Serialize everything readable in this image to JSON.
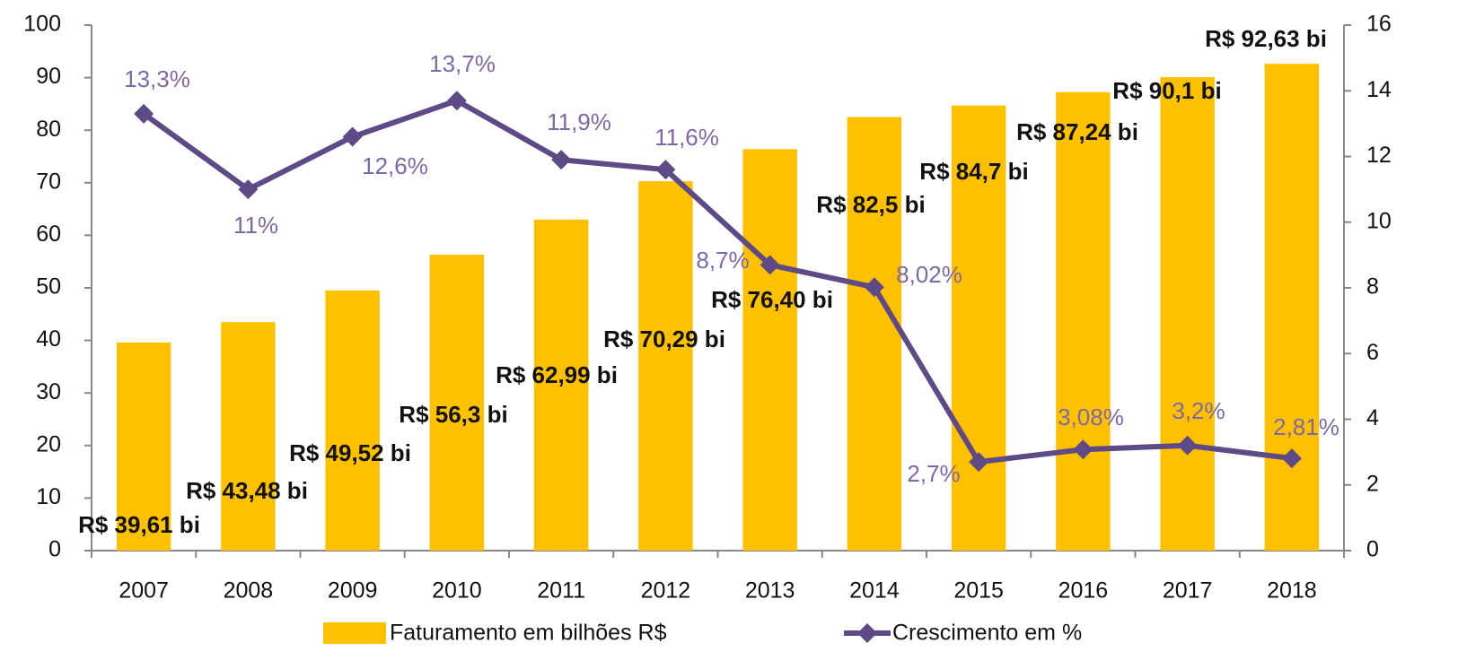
{
  "chart_data": {
    "type": "combo",
    "categories": [
      "2007",
      "2008",
      "2009",
      "2010",
      "2011",
      "2012",
      "2013",
      "2014",
      "2015",
      "2016",
      "2017",
      "2018"
    ],
    "series": [
      {
        "name": "Faturamento em bilhões R$",
        "type": "bar",
        "color": "#FFC000",
        "values": [
          39.61,
          43.48,
          49.52,
          56.3,
          62.99,
          70.29,
          76.4,
          82.5,
          84.7,
          87.24,
          90.1,
          92.63
        ],
        "value_labels": [
          "R$ 39,61 bi",
          "R$ 43,48 bi",
          "R$ 49,52 bi",
          "R$ 56,3 bi",
          "R$ 62,99 bi",
          "R$ 70,29 bi",
          "R$ 76,40 bi",
          "R$ 82,5 bi",
          "R$ 84,7 bi",
          "R$ 87,24 bi",
          "R$ 90,1 bi",
          "R$ 92,63 bi"
        ]
      },
      {
        "name": "Crescimento em %",
        "type": "line",
        "axis": "y2",
        "color": "#5E4A86",
        "values": [
          13.3,
          11,
          12.6,
          13.7,
          11.9,
          11.6,
          8.7,
          8.02,
          2.7,
          3.08,
          3.2,
          2.81
        ],
        "value_labels": [
          "13,3%",
          "11%",
          "12,6%",
          "13,7%",
          "11,9%",
          "11,6%",
          "8,7%",
          "8,02%",
          "2,7%",
          "3,08%",
          "3,2%",
          "2,81%"
        ]
      }
    ],
    "ylim": [
      0,
      100
    ],
    "yticks": [
      0,
      10,
      20,
      30,
      40,
      50,
      60,
      70,
      80,
      90,
      100
    ],
    "y2lim": [
      0,
      16
    ],
    "y2ticks": [
      0,
      2,
      4,
      6,
      8,
      10,
      12,
      14,
      16
    ],
    "legend": "bottom"
  }
}
